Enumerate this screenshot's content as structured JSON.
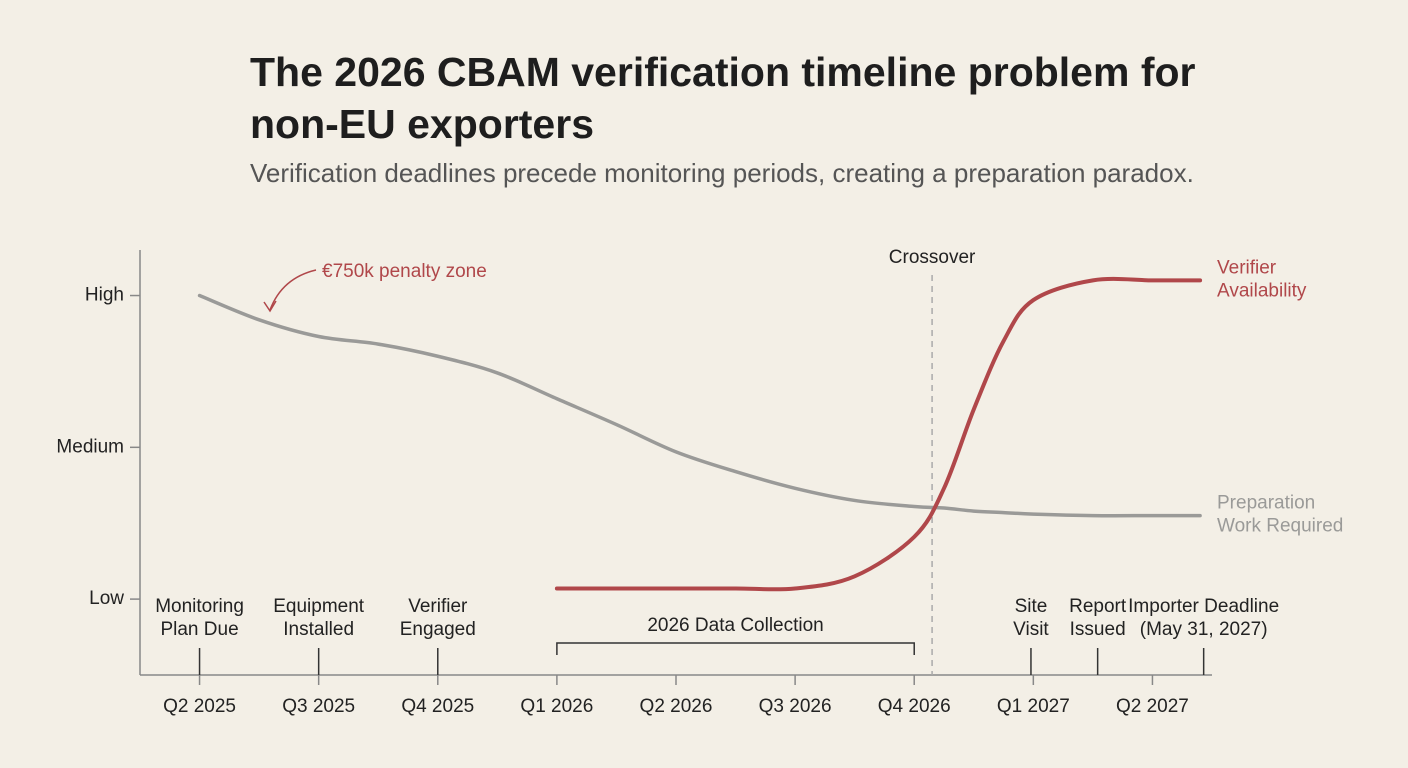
{
  "chart_data": {
    "type": "line",
    "title": "The 2026 CBAM verification timeline problem for non-EU exporters",
    "subtitle": "Verification deadlines precede monitoring periods, creating a preparation paradox.",
    "x": [
      0,
      0.5,
      1,
      1.5,
      2,
      2.5,
      3,
      3.5,
      4,
      4.5,
      5,
      5.5,
      6,
      6.25,
      6.5,
      6.75,
      7,
      7.5,
      8,
      8.4
    ],
    "xlim": [
      -0.5,
      8.5
    ],
    "xticks": [
      {
        "value": 0,
        "label": "Q2 2025"
      },
      {
        "value": 1,
        "label": "Q3 2025"
      },
      {
        "value": 2,
        "label": "Q4 2025"
      },
      {
        "value": 3,
        "label": "Q1 2026"
      },
      {
        "value": 4,
        "label": "Q2 2026"
      },
      {
        "value": 5,
        "label": "Q3 2026"
      },
      {
        "value": 6,
        "label": "Q4 2026"
      },
      {
        "value": 7,
        "label": "Q1 2027"
      },
      {
        "value": 8,
        "label": "Q2 2027"
      }
    ],
    "ylim": [
      0.5,
      3.3
    ],
    "yticks": [
      {
        "value": 1,
        "label": "Low"
      },
      {
        "value": 2,
        "label": "Medium"
      },
      {
        "value": 3,
        "label": "High"
      }
    ],
    "series": [
      {
        "name": "Preparation Work Required",
        "color": "#9a9a98",
        "values": [
          3.0,
          2.84,
          2.73,
          2.68,
          2.6,
          2.49,
          2.32,
          2.15,
          1.97,
          1.84,
          1.73,
          1.65,
          1.61,
          1.6,
          1.58,
          1.57,
          1.56,
          1.55,
          1.55,
          1.55
        ]
      },
      {
        "name": "Verifier Availability",
        "color": "#b0474a",
        "values": [
          null,
          null,
          null,
          null,
          null,
          null,
          1.07,
          1.07,
          1.07,
          1.07,
          1.07,
          1.15,
          1.41,
          1.73,
          2.25,
          2.7,
          2.97,
          3.1,
          3.1,
          3.1
        ]
      }
    ],
    "annotations": {
      "penalty": "€750k penalty zone",
      "crossover": {
        "label": "Crossover",
        "x": 6.15
      }
    },
    "milestones": [
      {
        "lines": [
          "Monitoring",
          "Plan Due"
        ],
        "x": 0
      },
      {
        "lines": [
          "Equipment",
          "Installed"
        ],
        "x": 1
      },
      {
        "lines": [
          "Verifier",
          "Engaged"
        ],
        "x": 2
      },
      {
        "lines": [
          "Site",
          "Visit"
        ],
        "x": 6.98
      },
      {
        "lines": [
          "Report",
          "Issued"
        ],
        "x": 7.54
      },
      {
        "lines": [
          "Importer Deadline",
          "(May 31, 2027)"
        ],
        "x": 8.43
      }
    ],
    "period": {
      "label": "2026 Data Collection",
      "start": 3,
      "end": 6
    }
  }
}
